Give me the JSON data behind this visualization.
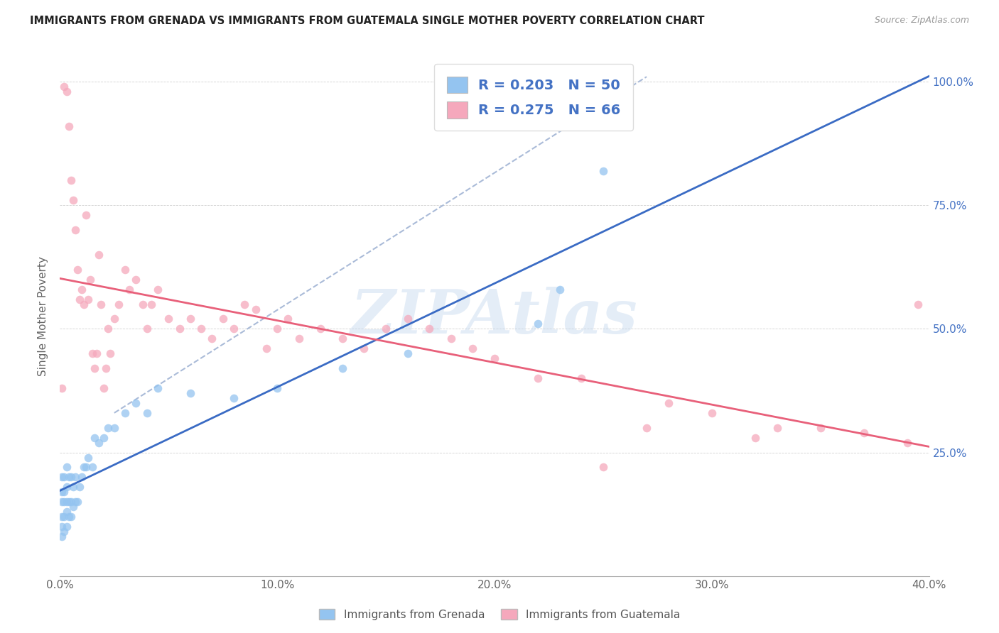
{
  "title": "IMMIGRANTS FROM GRENADA VS IMMIGRANTS FROM GUATEMALA SINGLE MOTHER POVERTY CORRELATION CHART",
  "source": "Source: ZipAtlas.com",
  "ylabel": "Single Mother Poverty",
  "xlim": [
    0.0,
    0.4
  ],
  "ylim": [
    0.0,
    1.05
  ],
  "xtick_labels": [
    "0.0%",
    "10.0%",
    "20.0%",
    "30.0%",
    "40.0%"
  ],
  "xtick_vals": [
    0.0,
    0.1,
    0.2,
    0.3,
    0.4
  ],
  "ytick_vals": [
    0.25,
    0.5,
    0.75,
    1.0
  ],
  "right_ytick_labels": [
    "25.0%",
    "50.0%",
    "75.0%",
    "100.0%"
  ],
  "grenada_color": "#94C4F0",
  "guatemala_color": "#F5A8BC",
  "grenada_line_color": "#3A6BC4",
  "guatemala_line_color": "#E8607A",
  "dashed_line_color": "#AABBD8",
  "grenada_R": 0.203,
  "grenada_N": 50,
  "guatemala_R": 0.275,
  "guatemala_N": 66,
  "watermark": "ZIPAtlas",
  "watermark_color": "#C5D8EE",
  "background_color": "#ffffff",
  "grenada_x": [
    0.001,
    0.001,
    0.001,
    0.001,
    0.001,
    0.001,
    0.002,
    0.002,
    0.002,
    0.002,
    0.002,
    0.003,
    0.003,
    0.003,
    0.003,
    0.003,
    0.004,
    0.004,
    0.004,
    0.005,
    0.005,
    0.005,
    0.006,
    0.006,
    0.007,
    0.007,
    0.008,
    0.009,
    0.01,
    0.011,
    0.012,
    0.013,
    0.015,
    0.016,
    0.018,
    0.02,
    0.022,
    0.025,
    0.03,
    0.035,
    0.04,
    0.045,
    0.06,
    0.08,
    0.1,
    0.13,
    0.16,
    0.22,
    0.23,
    0.25
  ],
  "grenada_y": [
    0.08,
    0.1,
    0.12,
    0.15,
    0.17,
    0.2,
    0.09,
    0.12,
    0.15,
    0.17,
    0.2,
    0.1,
    0.13,
    0.15,
    0.18,
    0.22,
    0.12,
    0.15,
    0.2,
    0.12,
    0.15,
    0.2,
    0.14,
    0.18,
    0.15,
    0.2,
    0.15,
    0.18,
    0.2,
    0.22,
    0.22,
    0.24,
    0.22,
    0.28,
    0.27,
    0.28,
    0.3,
    0.3,
    0.33,
    0.35,
    0.33,
    0.38,
    0.37,
    0.36,
    0.38,
    0.42,
    0.45,
    0.51,
    0.58,
    0.82
  ],
  "guatemala_x": [
    0.001,
    0.002,
    0.003,
    0.004,
    0.005,
    0.006,
    0.007,
    0.008,
    0.009,
    0.01,
    0.011,
    0.012,
    0.013,
    0.014,
    0.015,
    0.016,
    0.017,
    0.018,
    0.019,
    0.02,
    0.021,
    0.022,
    0.023,
    0.025,
    0.027,
    0.03,
    0.032,
    0.035,
    0.038,
    0.04,
    0.042,
    0.045,
    0.05,
    0.055,
    0.06,
    0.065,
    0.07,
    0.075,
    0.08,
    0.085,
    0.09,
    0.095,
    0.1,
    0.105,
    0.11,
    0.12,
    0.13,
    0.14,
    0.15,
    0.16,
    0.17,
    0.18,
    0.19,
    0.2,
    0.22,
    0.24,
    0.25,
    0.27,
    0.28,
    0.3,
    0.32,
    0.33,
    0.35,
    0.37,
    0.39,
    0.395
  ],
  "guatemala_y": [
    0.38,
    0.99,
    0.98,
    0.91,
    0.8,
    0.76,
    0.7,
    0.62,
    0.56,
    0.58,
    0.55,
    0.73,
    0.56,
    0.6,
    0.45,
    0.42,
    0.45,
    0.65,
    0.55,
    0.38,
    0.42,
    0.5,
    0.45,
    0.52,
    0.55,
    0.62,
    0.58,
    0.6,
    0.55,
    0.5,
    0.55,
    0.58,
    0.52,
    0.5,
    0.52,
    0.5,
    0.48,
    0.52,
    0.5,
    0.55,
    0.54,
    0.46,
    0.5,
    0.52,
    0.48,
    0.5,
    0.48,
    0.46,
    0.5,
    0.52,
    0.5,
    0.48,
    0.46,
    0.44,
    0.4,
    0.4,
    0.22,
    0.3,
    0.35,
    0.33,
    0.28,
    0.3,
    0.3,
    0.29,
    0.27,
    0.55
  ]
}
